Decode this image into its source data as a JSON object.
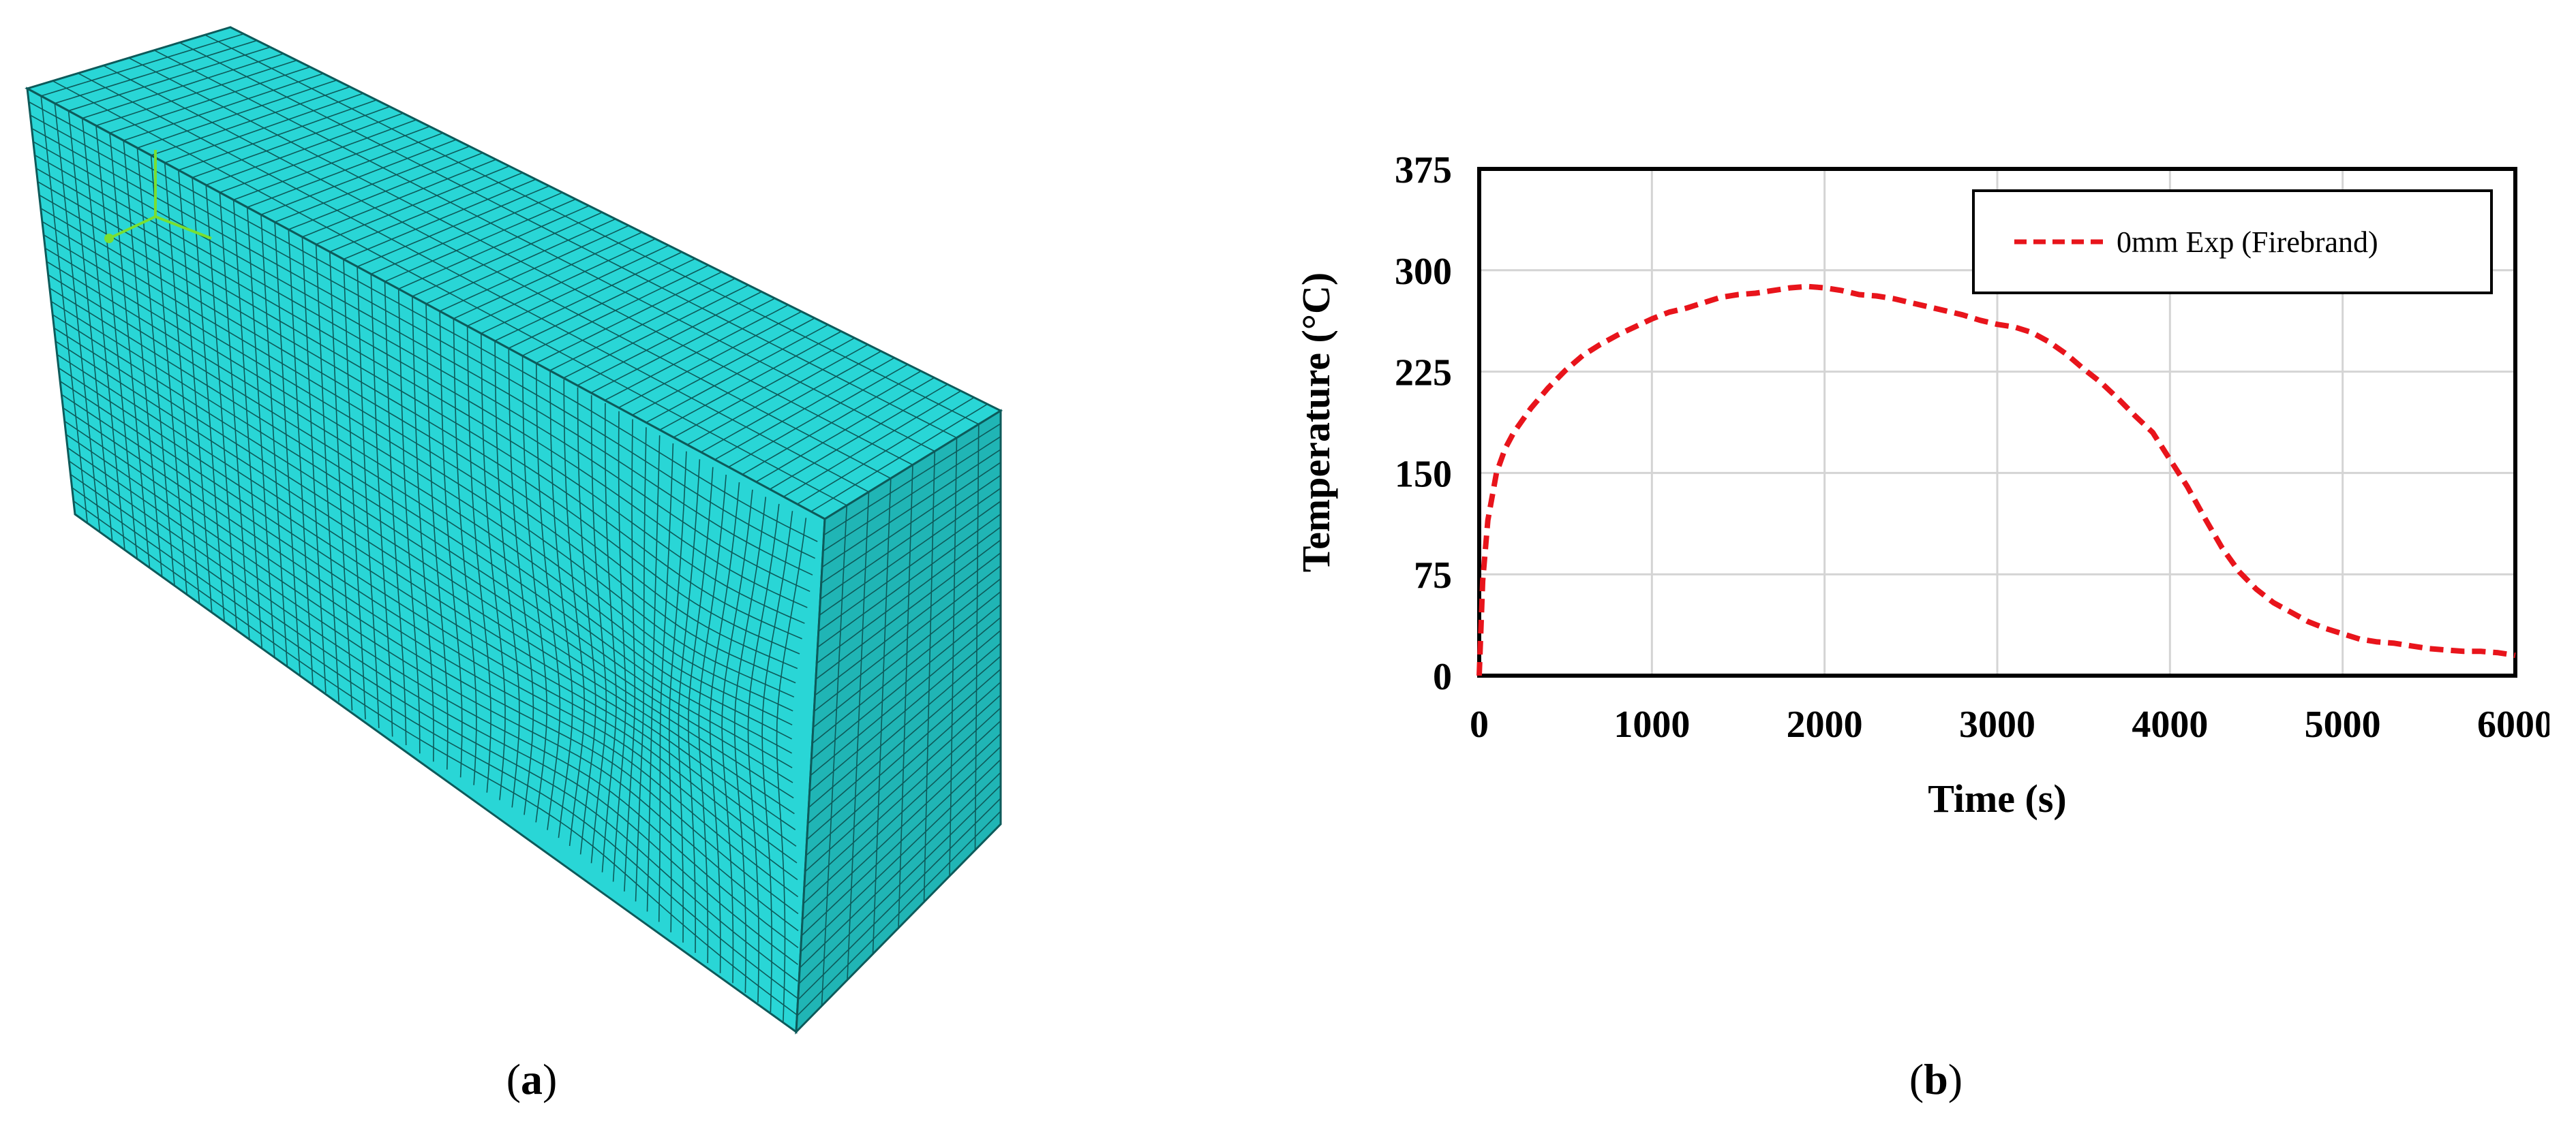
{
  "panels": {
    "a": {
      "label_open": "(",
      "label_letter": "a",
      "label_close": ")"
    },
    "b": {
      "label_open": "(",
      "label_letter": "b",
      "label_close": ")"
    }
  },
  "mesh": {
    "fill_color": "#29d6d6",
    "side_color": "#20b5b5",
    "line_color": "#0d5a5a",
    "triad_color": "#7adf30"
  },
  "chart_data": {
    "type": "line",
    "title": "",
    "xlabel": "Time (s)",
    "ylabel": "Temperature (°C)",
    "xlim": [
      0,
      6000
    ],
    "ylim": [
      0,
      375
    ],
    "xticks": [
      0,
      1000,
      2000,
      3000,
      4000,
      5000,
      6000
    ],
    "yticks": [
      0,
      75,
      150,
      225,
      300,
      375
    ],
    "xtick_labels": [
      "0",
      "1000",
      "2000",
      "3000",
      "4000",
      "5000",
      "6000"
    ],
    "ytick_labels": [
      "0",
      "75",
      "150",
      "225",
      "300",
      "375"
    ],
    "grid": true,
    "legend_position": "top-right",
    "series": [
      {
        "name": "0mm  Exp (Firebrand)",
        "color": "#e8141b",
        "style": "dashed",
        "x": [
          0,
          20,
          50,
          100,
          150,
          200,
          300,
          400,
          500,
          600,
          700,
          800,
          900,
          1000,
          1100,
          1200,
          1300,
          1400,
          1500,
          1600,
          1700,
          1800,
          1900,
          2000,
          2100,
          2200,
          2300,
          2400,
          2500,
          2600,
          2700,
          2800,
          2900,
          3000,
          3100,
          3200,
          3300,
          3400,
          3500,
          3600,
          3700,
          3800,
          3900,
          4000,
          4100,
          4200,
          4300,
          4400,
          4500,
          4600,
          4700,
          4800,
          4900,
          5000,
          5100,
          5200,
          5300,
          5400,
          5500,
          5600,
          5700,
          5800,
          5900,
          6000
        ],
        "y": [
          0,
          70,
          115,
          150,
          168,
          180,
          198,
          213,
          226,
          237,
          245,
          252,
          258,
          264,
          269,
          272,
          276,
          280,
          282,
          283,
          285,
          287,
          288,
          287,
          285,
          282,
          281,
          279,
          276,
          273,
          270,
          267,
          263,
          260,
          258,
          254,
          247,
          238,
          227,
          217,
          205,
          192,
          180,
          160,
          140,
          117,
          95,
          77,
          64,
          54,
          47,
          40,
          35,
          31,
          27,
          25,
          24,
          22,
          20,
          19,
          18,
          18,
          17,
          15
        ]
      }
    ]
  }
}
